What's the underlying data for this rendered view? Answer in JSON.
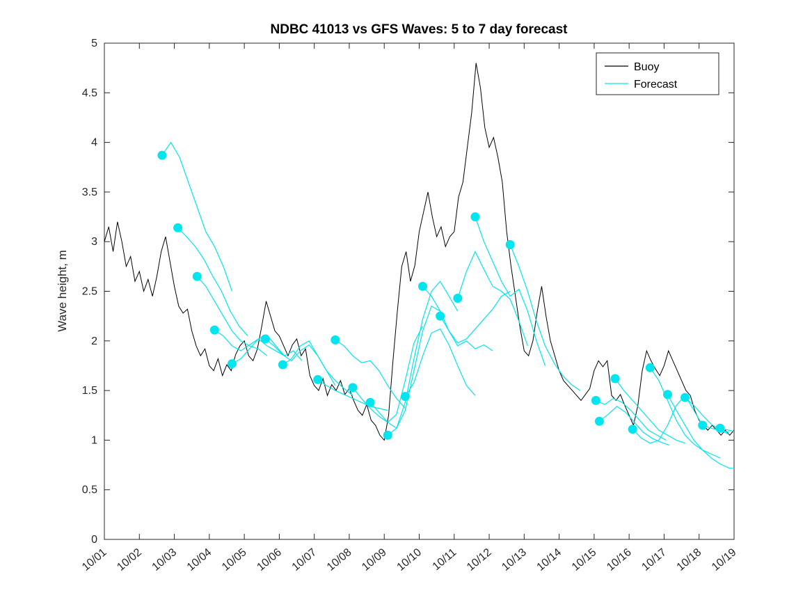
{
  "chart_data": {
    "type": "line",
    "title": "NDBC 41013 vs GFS Waves: 5 to 7 day forecast",
    "xlabel": "",
    "ylabel": "Wave height, m",
    "ylim": [
      0,
      5
    ],
    "yticks": [
      0,
      0.5,
      1,
      1.5,
      2,
      2.5,
      3,
      3.5,
      4,
      4.5,
      5
    ],
    "ytick_labels": [
      "0",
      "0.5",
      "1",
      "1.5",
      "2",
      "2.5",
      "3",
      "3.5",
      "4",
      "4.5",
      "5"
    ],
    "xtick_labels": [
      "10/01",
      "10/02",
      "10/03",
      "10/04",
      "10/05",
      "10/06",
      "10/07",
      "10/08",
      "10/09",
      "10/10",
      "10/11",
      "10/12",
      "10/13",
      "10/14",
      "10/15",
      "10/16",
      "10/17",
      "10/18",
      "10/19"
    ],
    "x_range": [
      1,
      19
    ],
    "grid": false,
    "legend_position": "top-right",
    "legend": [
      "Buoy",
      "Forecast"
    ],
    "colors": {
      "buoy": "#000000",
      "forecast": "#00e5ee"
    },
    "series": {
      "buoy": {
        "name": "Buoy",
        "x_start": 1,
        "x_step": 0.125,
        "y": [
          3.0,
          3.15,
          2.9,
          3.2,
          3.0,
          2.75,
          2.85,
          2.6,
          2.7,
          2.5,
          2.62,
          2.45,
          2.65,
          2.9,
          3.05,
          2.8,
          2.55,
          2.35,
          2.28,
          2.32,
          2.1,
          1.95,
          1.85,
          1.92,
          1.75,
          1.7,
          1.82,
          1.65,
          1.76,
          1.7,
          1.86,
          1.95,
          2.0,
          1.85,
          1.8,
          1.92,
          2.15,
          2.4,
          2.25,
          2.1,
          2.05,
          1.95,
          1.85,
          1.96,
          2.02,
          1.85,
          1.92,
          1.65,
          1.55,
          1.5,
          1.62,
          1.45,
          1.56,
          1.5,
          1.6,
          1.46,
          1.52,
          1.4,
          1.3,
          1.25,
          1.36,
          1.2,
          1.15,
          1.05,
          1.0,
          1.25,
          1.8,
          2.3,
          2.75,
          2.9,
          2.6,
          2.76,
          3.1,
          3.3,
          3.5,
          3.25,
          3.05,
          3.15,
          2.95,
          3.05,
          3.1,
          3.45,
          3.6,
          3.95,
          4.3,
          4.8,
          4.55,
          4.15,
          3.95,
          4.05,
          3.85,
          3.6,
          3.1,
          2.75,
          2.45,
          2.15,
          1.9,
          1.85,
          2.0,
          2.3,
          2.55,
          2.25,
          2.0,
          1.85,
          1.7,
          1.6,
          1.55,
          1.5,
          1.45,
          1.4,
          1.46,
          1.52,
          1.7,
          1.8,
          1.74,
          1.8,
          1.45,
          1.4,
          1.46,
          1.35,
          1.25,
          1.15,
          1.35,
          1.7,
          1.9,
          1.8,
          1.72,
          1.65,
          1.75,
          1.9,
          1.8,
          1.7,
          1.6,
          1.5,
          1.45,
          1.3,
          1.2,
          1.15,
          1.1,
          1.15,
          1.1,
          1.05,
          1.1,
          1.05,
          1.1
        ]
      },
      "forecasts": [
        {
          "start": 2.65,
          "step": 0.25,
          "y": [
            3.87,
            4.0,
            3.85,
            3.6,
            3.35,
            3.1,
            2.95,
            2.75,
            2.5
          ]
        },
        {
          "start": 3.1,
          "step": 0.25,
          "y": [
            3.14,
            3.05,
            2.95,
            2.82,
            2.65,
            2.5,
            2.3,
            2.15,
            2.05
          ]
        },
        {
          "start": 3.65,
          "step": 0.25,
          "y": [
            2.65,
            2.55,
            2.4,
            2.25,
            2.1,
            2.0,
            1.95,
            1.92,
            1.85
          ]
        },
        {
          "start": 4.15,
          "step": 0.25,
          "y": [
            2.11,
            2.05,
            1.95,
            1.9,
            1.96,
            2.02,
            1.95,
            1.9,
            1.85
          ]
        },
        {
          "start": 4.65,
          "step": 0.25,
          "y": [
            1.77,
            1.82,
            1.92,
            2.02,
            2.06,
            1.95,
            1.85,
            1.9,
            1.8
          ]
        },
        {
          "start": 5.6,
          "step": 0.25,
          "y": [
            2.02,
            1.95,
            1.86,
            1.8,
            1.9,
            1.96,
            1.85,
            1.7,
            1.55
          ]
        },
        {
          "start": 6.1,
          "step": 0.25,
          "y": [
            1.76,
            1.82,
            1.95,
            2.0,
            1.85,
            1.7,
            1.6,
            1.52,
            1.45
          ]
        },
        {
          "start": 7.1,
          "step": 0.25,
          "y": [
            1.61,
            1.55,
            1.5,
            1.46,
            1.42,
            1.38,
            1.34,
            1.32,
            1.3
          ]
        },
        {
          "start": 7.6,
          "step": 0.25,
          "y": [
            2.01,
            1.95,
            1.85,
            1.78,
            1.8,
            1.7,
            1.55,
            1.42,
            1.32
          ]
        },
        {
          "start": 8.1,
          "step": 0.25,
          "y": [
            1.53,
            1.42,
            1.32,
            1.24,
            1.18,
            1.26,
            1.6,
            1.98,
            2.15
          ]
        },
        {
          "start": 8.6,
          "step": 0.25,
          "y": [
            1.38,
            1.28,
            1.18,
            1.12,
            1.3,
            1.7,
            2.1,
            2.35,
            2.3
          ]
        },
        {
          "start": 9.1,
          "step": 0.25,
          "y": [
            1.05,
            1.12,
            1.38,
            1.82,
            2.22,
            2.5,
            2.6,
            2.45,
            2.3
          ]
        },
        {
          "start": 9.6,
          "step": 0.25,
          "y": [
            1.44,
            1.58,
            1.85,
            2.08,
            2.12,
            1.96,
            1.75,
            1.55,
            1.45
          ]
        },
        {
          "start": 10.1,
          "step": 0.25,
          "y": [
            2.55,
            2.45,
            2.3,
            2.1,
            1.95,
            2.0,
            1.92,
            1.96,
            1.9
          ]
        },
        {
          "start": 10.6,
          "step": 0.25,
          "y": [
            2.25,
            2.1,
            1.98,
            2.02,
            2.12,
            2.22,
            2.32,
            2.45,
            2.5
          ]
        },
        {
          "start": 11.1,
          "step": 0.25,
          "y": [
            2.43,
            2.7,
            2.9,
            2.72,
            2.55,
            2.5,
            2.42,
            2.2,
            1.95
          ]
        },
        {
          "start": 11.6,
          "step": 0.25,
          "y": [
            3.25,
            3.0,
            2.8,
            2.6,
            2.45,
            2.52,
            2.3,
            2.0,
            1.75
          ]
        },
        {
          "start": 12.6,
          "step": 0.25,
          "y": [
            2.97,
            2.75,
            2.5,
            2.2,
            1.95,
            1.78,
            1.65,
            1.56,
            1.5
          ]
        },
        {
          "start": 15.05,
          "step": 0.25,
          "y": [
            1.4,
            1.36,
            1.42,
            1.38,
            1.3,
            1.2,
            1.1,
            1.05,
            1.0
          ]
        },
        {
          "start": 15.15,
          "step": 0.25,
          "y": [
            1.19,
            1.26,
            1.34,
            1.28,
            1.18,
            1.08,
            1.02,
            0.98,
            0.95
          ]
        },
        {
          "start": 15.6,
          "step": 0.25,
          "y": [
            1.62,
            1.5,
            1.4,
            1.3,
            1.2,
            1.1,
            1.05,
            1.0,
            0.97
          ]
        },
        {
          "start": 16.1,
          "step": 0.25,
          "y": [
            1.11,
            1.02,
            0.97,
            1.0,
            1.15,
            1.35,
            1.45,
            1.3,
            1.15
          ]
        },
        {
          "start": 16.6,
          "step": 0.25,
          "y": [
            1.73,
            1.6,
            1.4,
            1.2,
            1.05,
            0.96,
            0.9,
            0.86,
            0.82
          ]
        },
        {
          "start": 17.1,
          "step": 0.25,
          "y": [
            1.46,
            1.3,
            1.15,
            1.0,
            0.9,
            0.82,
            0.76,
            0.72,
            0.71
          ]
        },
        {
          "start": 17.6,
          "step": 0.25,
          "y": [
            1.43,
            1.35,
            1.25,
            1.16,
            1.1,
            1.06
          ]
        },
        {
          "start": 18.1,
          "step": 0.25,
          "y": [
            1.15,
            1.12,
            1.1,
            1.08
          ]
        },
        {
          "start": 18.6,
          "step": 0.25,
          "y": [
            1.12,
            1.1,
            1.08
          ]
        }
      ]
    }
  }
}
